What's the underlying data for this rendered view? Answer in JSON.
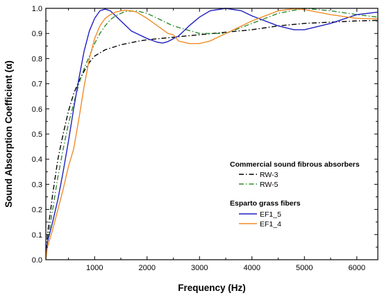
{
  "chart_data": {
    "type": "line",
    "xlabel": "Frequency (Hz)",
    "ylabel": "Sound Absorption Coefficient (α)",
    "xlim": [
      70,
      6400
    ],
    "ylim": [
      0.0,
      1.0
    ],
    "xticks": [
      1000,
      2000,
      3000,
      4000,
      5000,
      6000
    ],
    "xtick_labels": [
      "1000",
      "2000",
      "3000",
      "4000",
      "5000",
      "6000"
    ],
    "yticks": [
      0.0,
      0.1,
      0.2,
      0.3,
      0.4,
      0.5,
      0.6,
      0.7,
      0.8,
      0.9,
      1.0
    ],
    "ytick_labels": [
      "0.0",
      "0.1",
      "0.2",
      "0.3",
      "0.4",
      "0.5",
      "0.6",
      "0.7",
      "0.8",
      "0.9",
      "1.0"
    ],
    "grid": false,
    "legend": {
      "placement": "bottom-right",
      "groups": [
        {
          "title": "Commercial sound fibrous absorbers",
          "entries": [
            "RW-3",
            "RW-5"
          ]
        },
        {
          "title": "Esparto grass fibers",
          "entries": [
            "EF1_5",
            "EF1_4"
          ]
        }
      ]
    },
    "series": [
      {
        "name": "RW-3",
        "color": "#000000",
        "dash": "dash-dot",
        "x": [
          70,
          100,
          200,
          300,
          400,
          500,
          600,
          700,
          800,
          900,
          1000,
          1200,
          1500,
          1800,
          2000,
          2500,
          3000,
          3500,
          4000,
          4500,
          5000,
          5500,
          6000,
          6400
        ],
        "y": [
          0.0,
          0.1,
          0.26,
          0.4,
          0.5,
          0.59,
          0.66,
          0.71,
          0.75,
          0.785,
          0.81,
          0.835,
          0.855,
          0.868,
          0.875,
          0.885,
          0.895,
          0.905,
          0.915,
          0.93,
          0.94,
          0.945,
          0.95,
          0.952
        ]
      },
      {
        "name": "RW-5",
        "color": "#2e8b2e",
        "dash": "dash-dot",
        "x": [
          70,
          100,
          200,
          300,
          400,
          500,
          600,
          700,
          800,
          900,
          1000,
          1100,
          1200,
          1300,
          1400,
          1500,
          1600,
          1800,
          2000,
          2200,
          2500,
          3000,
          3500,
          4000,
          4500,
          5000,
          5500,
          6000,
          6400
        ],
        "y": [
          0.0,
          0.07,
          0.2,
          0.33,
          0.44,
          0.54,
          0.62,
          0.7,
          0.76,
          0.81,
          0.86,
          0.9,
          0.93,
          0.955,
          0.97,
          0.98,
          0.988,
          0.99,
          0.98,
          0.96,
          0.93,
          0.9,
          0.9,
          0.94,
          0.98,
          1.0,
          0.99,
          0.975,
          0.965
        ]
      },
      {
        "name": "EF1_5",
        "color": "#1f1fbf",
        "dash": "solid",
        "x": [
          70,
          100,
          200,
          300,
          400,
          500,
          600,
          700,
          800,
          900,
          1000,
          1100,
          1200,
          1300,
          1400,
          1500,
          1600,
          1700,
          1800,
          2000,
          2200,
          2300,
          2400,
          2600,
          2800,
          3000,
          3200,
          3500,
          3800,
          4000,
          4500,
          4800,
          5000,
          5500,
          6000,
          6400
        ],
        "y": [
          0.0,
          0.07,
          0.15,
          0.24,
          0.35,
          0.47,
          0.6,
          0.72,
          0.83,
          0.91,
          0.96,
          0.99,
          0.997,
          0.99,
          0.97,
          0.95,
          0.93,
          0.91,
          0.9,
          0.88,
          0.865,
          0.862,
          0.868,
          0.89,
          0.93,
          0.965,
          0.99,
          1.0,
          0.99,
          0.97,
          0.93,
          0.915,
          0.915,
          0.94,
          0.975,
          0.985
        ]
      },
      {
        "name": "EF1_4",
        "color": "#f08c28",
        "dash": "solid",
        "x": [
          70,
          100,
          200,
          300,
          400,
          500,
          600,
          700,
          800,
          900,
          1000,
          1100,
          1200,
          1300,
          1400,
          1500,
          1600,
          1700,
          1800,
          2000,
          2200,
          2400,
          2500,
          2600,
          2800,
          3000,
          3200,
          3500,
          4000,
          4500,
          4800,
          5000,
          5500,
          6000,
          6400
        ],
        "y": [
          0.0,
          0.05,
          0.12,
          0.2,
          0.28,
          0.37,
          0.44,
          0.56,
          0.69,
          0.8,
          0.88,
          0.93,
          0.96,
          0.975,
          0.985,
          0.99,
          0.992,
          0.99,
          0.985,
          0.96,
          0.93,
          0.9,
          0.895,
          0.87,
          0.86,
          0.86,
          0.87,
          0.9,
          0.95,
          0.99,
          0.998,
          0.995,
          0.975,
          0.96,
          0.958
        ]
      }
    ]
  }
}
